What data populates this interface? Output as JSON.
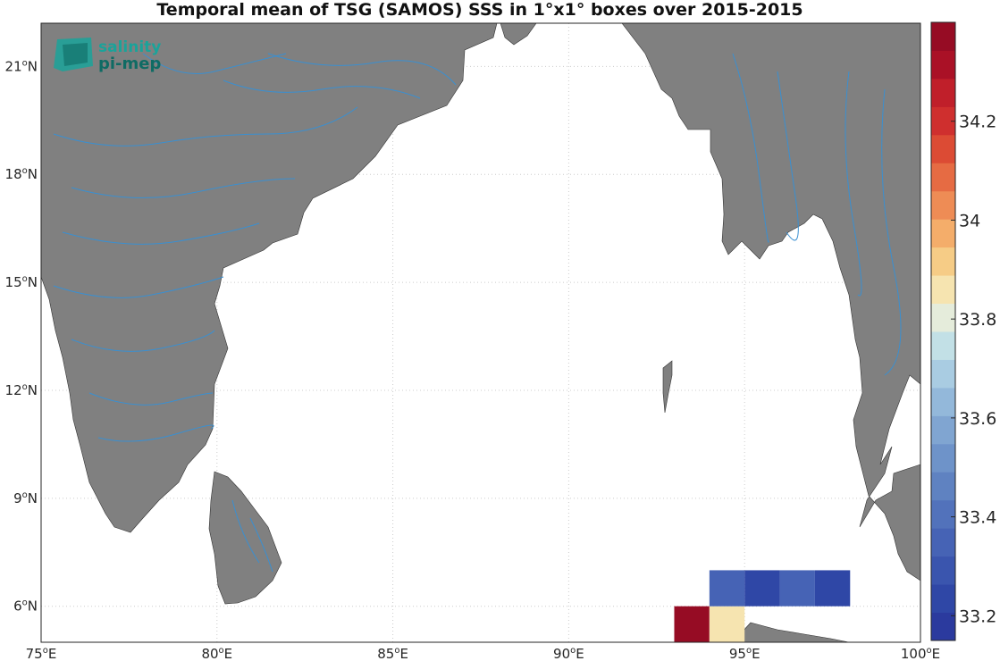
{
  "title": "Temporal mean of TSG (SAMOS) SSS in 1°x1° boxes over 2015-2015",
  "logo": {
    "line1": "salinity",
    "line2": "pi-mep"
  },
  "map": {
    "lon_range": [
      75,
      100
    ],
    "lat_range": [
      5,
      22.2
    ],
    "land_color": "#808080",
    "ocean_color": "#ffffff",
    "river_color": "#3a8fd0",
    "grid_style": "dotted light gray"
  },
  "x_ticks": [
    {
      "value": 75,
      "deg": "75",
      "hemi": "E"
    },
    {
      "value": 80,
      "deg": "80",
      "hemi": "E"
    },
    {
      "value": 85,
      "deg": "85",
      "hemi": "E"
    },
    {
      "value": 90,
      "deg": "90",
      "hemi": "E"
    },
    {
      "value": 95,
      "deg": "95",
      "hemi": "E"
    },
    {
      "value": 100,
      "deg": "100",
      "hemi": "E"
    }
  ],
  "y_ticks": [
    {
      "value": 6,
      "deg": "6",
      "hemi": "N"
    },
    {
      "value": 9,
      "deg": "9",
      "hemi": "N"
    },
    {
      "value": 12,
      "deg": "12",
      "hemi": "N"
    },
    {
      "value": 15,
      "deg": "15",
      "hemi": "N"
    },
    {
      "value": 18,
      "deg": "18",
      "hemi": "N"
    },
    {
      "value": 21,
      "deg": "21",
      "hemi": "N"
    }
  ],
  "chart_data": {
    "type": "heatmap",
    "title": "Temporal mean of TSG (SAMOS) SSS in 1°x1° boxes over 2015-2015",
    "variable": "SSS",
    "cells": [
      {
        "lon_min": 93,
        "lon_max": 94,
        "lat_min": 5,
        "lat_max": 6,
        "sss": 34.3
      },
      {
        "lon_min": 94,
        "lon_max": 95,
        "lat_min": 5,
        "lat_max": 6,
        "sss": 33.75
      },
      {
        "lon_min": 94,
        "lon_max": 95,
        "lat_min": 6,
        "lat_max": 7,
        "sss": 33.31
      },
      {
        "lon_min": 95,
        "lon_max": 96,
        "lat_min": 6,
        "lat_max": 7,
        "sss": 33.24
      },
      {
        "lon_min": 96,
        "lon_max": 97,
        "lat_min": 6,
        "lat_max": 7,
        "sss": 33.33
      },
      {
        "lon_min": 97,
        "lon_max": 98,
        "lat_min": 6,
        "lat_max": 7,
        "sss": 33.22
      }
    ],
    "colorbar": {
      "min": 33.15,
      "max": 34.4,
      "step": 0.05,
      "ticks": [
        "33.2",
        "33.4",
        "33.6",
        "33.8",
        "34",
        "34.2"
      ],
      "colors": [
        "#2b3a9e",
        "#2f47a6",
        "#3a55ae",
        "#4663b5",
        "#5272bb",
        "#5f82c1",
        "#6e93c9",
        "#80a5d1",
        "#93b8da",
        "#a9cce2",
        "#c2e0e6",
        "#e5ecdb",
        "#f6e4b0",
        "#f6cc86",
        "#f4ad6a",
        "#ee8c55",
        "#e66b43",
        "#dc4b34",
        "#cf2f2e",
        "#c01f2a",
        "#aa1126",
        "#960c24"
      ]
    }
  }
}
